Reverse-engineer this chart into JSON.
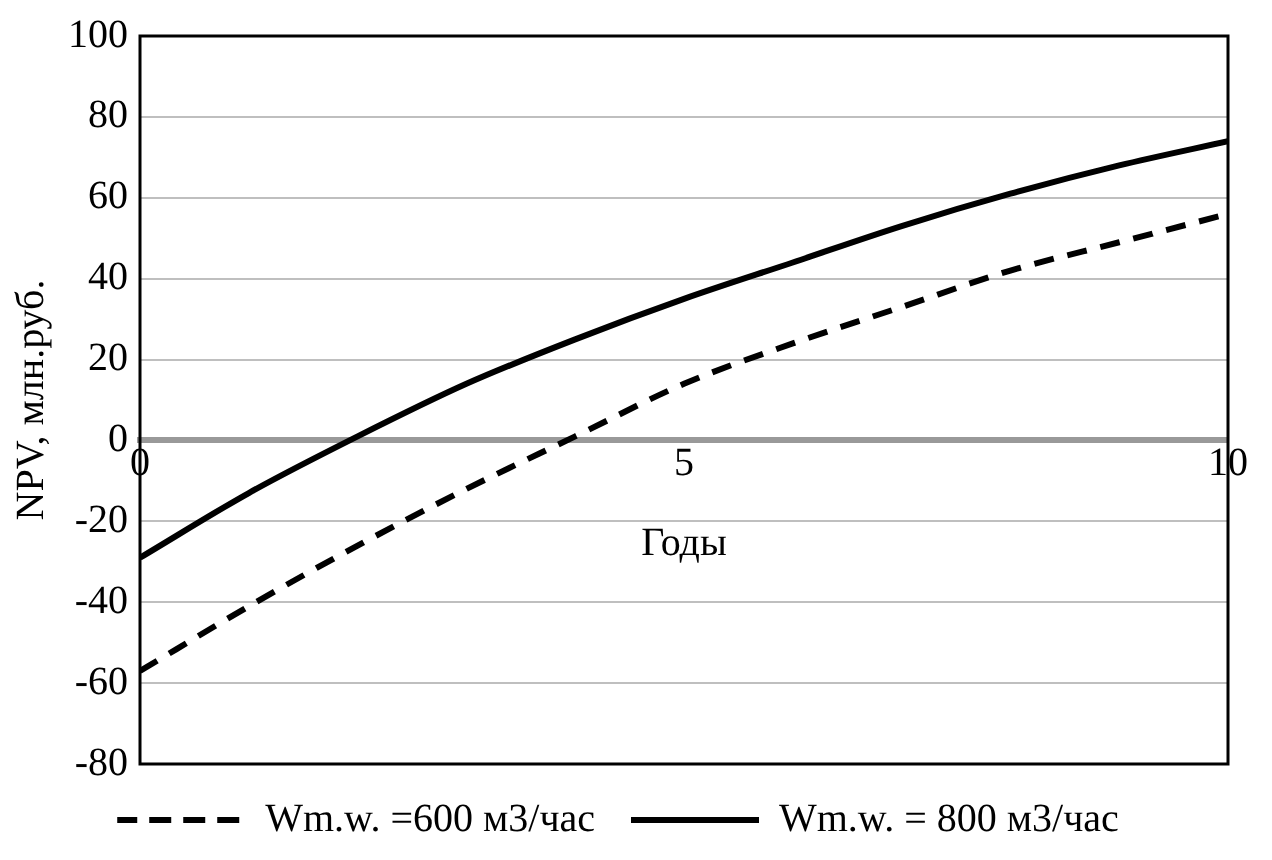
{
  "chart_data": {
    "type": "line",
    "xlabel": "Годы",
    "ylabel": "NPV, млн.руб.",
    "x": [
      0,
      1,
      2,
      3,
      4,
      5,
      6,
      7,
      8,
      9,
      10
    ],
    "series": [
      {
        "name": "Wm.w. =600 м3/час",
        "color": "#000000",
        "line_style": "dashed",
        "values": [
          -57,
          -41,
          -26,
          -12,
          1,
          14,
          24,
          33,
          42,
          49,
          56
        ]
      },
      {
        "name": "Wm.w. = 800 м3/час",
        "color": "#000000",
        "line_style": "solid",
        "values": [
          -29,
          -13,
          1,
          14,
          25,
          35,
          44,
          53,
          61,
          68,
          74
        ]
      }
    ],
    "xlim": [
      0,
      10
    ],
    "xticks": [
      0,
      5,
      10
    ],
    "ylim": [
      -80,
      100
    ],
    "yticks": [
      -80,
      -60,
      -40,
      -20,
      0,
      20,
      40,
      60,
      80,
      100
    ],
    "grid": "y",
    "legend": "bottom",
    "marker": "none"
  }
}
